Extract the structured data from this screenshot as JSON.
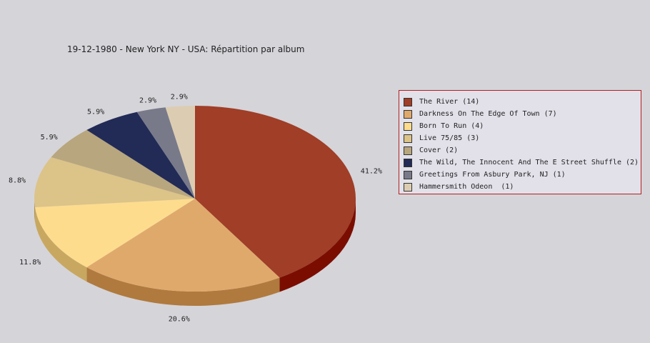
{
  "chart_data": {
    "type": "pie",
    "title": "19-12-1980 - New York NY - USA:  Répartition par album",
    "slices": [
      {
        "label": "The River (14)",
        "value": 14,
        "percent_label": "41.2%",
        "color": "#a03e27",
        "side_color": "#7a0d00"
      },
      {
        "label": "Darkness On The Edge Of Town (7)",
        "value": 7,
        "percent_label": "20.6%",
        "color": "#e0a96c",
        "side_color": "#b07a3e"
      },
      {
        "label": "Born To Run (4)",
        "value": 4,
        "percent_label": "11.8%",
        "color": "#fddc8e",
        "side_color": "#c8a860"
      },
      {
        "label": "Live 75/85 (3)",
        "value": 3,
        "percent_label": "8.8%",
        "color": "#dcc388",
        "side_color": "#a89058"
      },
      {
        "label": "Cover (2)",
        "value": 2,
        "percent_label": "5.9%",
        "color": "#b8a67e",
        "side_color": "#8a7a56"
      },
      {
        "label": "The Wild, The Innocent And The E Street Shuffle (2)",
        "value": 2,
        "percent_label": "5.9%",
        "color": "#222a56",
        "side_color": "#101633"
      },
      {
        "label": "Greetings From Asbury Park, NJ (1)",
        "value": 1,
        "percent_label": "2.9%",
        "color": "#787a8a",
        "side_color": "#55576a"
      },
      {
        "label": "Hammersmith Odeon  (1)",
        "value": 1,
        "percent_label": "2.9%",
        "color": "#dccdb2",
        "side_color": "#b0a286"
      }
    ],
    "legend_position": "right"
  }
}
